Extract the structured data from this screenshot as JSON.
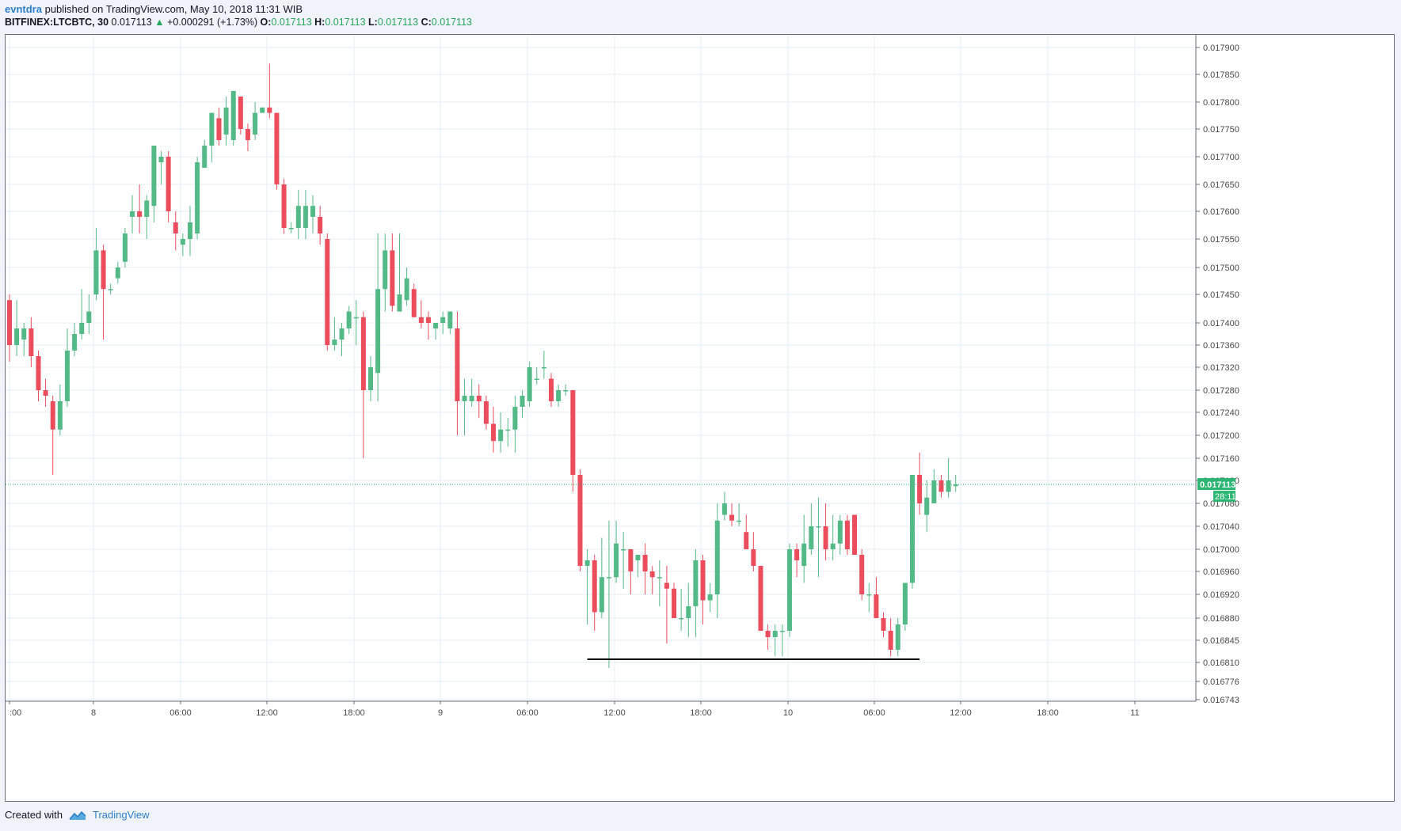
{
  "header": {
    "author": "evntdra",
    "published": "published on TradingView.com, May 10, 2018 11:31 WIB",
    "symbol": "BITFINEX:LTCBTC, 30",
    "last": "0.017113",
    "change": "+0.000291 (+1.73%)",
    "o_label": "O:",
    "o_value": "0.017113",
    "h_label": "H:",
    "h_value": "0.017113",
    "l_label": "L:",
    "l_value": "0.017113",
    "c_label": "C:",
    "c_value": "0.017113"
  },
  "footer": {
    "created": "Created with",
    "brand": "TradingView"
  },
  "colors": {
    "up": "#53b987",
    "down": "#eb4d5c",
    "grid": "#e6edf3",
    "axis_text": "#4a4a4a",
    "price_line": "#2bb673"
  },
  "chart_data": {
    "type": "candlestick",
    "interval": "30",
    "price_scale": "right",
    "grid": true,
    "last_price_label": "0.017113",
    "countdown_label": "28:11",
    "y_ticks": [
      "0.017900",
      "0.017850",
      "0.017800",
      "0.017750",
      "0.017700",
      "0.017650",
      "0.017600",
      "0.017550",
      "0.017500",
      "0.017450",
      "0.017400",
      "0.017360",
      "0.017320",
      "0.017280",
      "0.017240",
      "0.017200",
      "0.017160",
      "0.017120",
      "0.017080",
      "0.017040",
      "0.017000",
      "0.016960",
      "0.016920",
      "0.016880",
      "0.016845",
      "0.016810",
      "0.016776",
      "0.016743"
    ],
    "x_ticks": [
      ":00",
      "8",
      "06:00",
      "12:00",
      "18:00",
      "9",
      "06:00",
      "12:00",
      "18:00",
      "10",
      "06:00",
      "12:00",
      "18:00",
      "11"
    ],
    "candles_ohlc": [
      [
        0.01744,
        0.01745,
        0.01733,
        0.01736
      ],
      [
        0.01736,
        0.01744,
        0.01734,
        0.01739
      ],
      [
        0.01737,
        0.0174,
        0.01734,
        0.01739
      ],
      [
        0.01739,
        0.01741,
        0.01732,
        0.01734
      ],
      [
        0.01734,
        0.01735,
        0.01726,
        0.01728
      ],
      [
        0.01728,
        0.0173,
        0.01725,
        0.01727
      ],
      [
        0.01726,
        0.01727,
        0.01713,
        0.01721
      ],
      [
        0.01721,
        0.01729,
        0.0172,
        0.01726
      ],
      [
        0.01726,
        0.01739,
        0.01725,
        0.01735
      ],
      [
        0.01735,
        0.0174,
        0.01734,
        0.01738
      ],
      [
        0.01738,
        0.01746,
        0.01737,
        0.0174
      ],
      [
        0.0174,
        0.01745,
        0.01738,
        0.01742
      ],
      [
        0.01745,
        0.01757,
        0.01744,
        0.01753
      ],
      [
        0.01753,
        0.01754,
        0.01737,
        0.01746
      ],
      [
        0.01746,
        0.01747,
        0.01745,
        0.01746
      ],
      [
        0.01748,
        0.01751,
        0.01747,
        0.0175
      ],
      [
        0.01751,
        0.01757,
        0.0175,
        0.01756
      ],
      [
        0.01759,
        0.01763,
        0.01756,
        0.0176
      ],
      [
        0.0176,
        0.01765,
        0.01756,
        0.01759
      ],
      [
        0.01759,
        0.01763,
        0.01755,
        0.01762
      ],
      [
        0.01761,
        0.01772,
        0.01758,
        0.01772
      ],
      [
        0.01769,
        0.01771,
        0.01765,
        0.0177
      ],
      [
        0.0177,
        0.01771,
        0.01758,
        0.0176
      ],
      [
        0.01758,
        0.0176,
        0.01753,
        0.01756
      ],
      [
        0.01754,
        0.01756,
        0.01752,
        0.01755
      ],
      [
        0.01755,
        0.01761,
        0.01752,
        0.01758
      ],
      [
        0.01756,
        0.0177,
        0.01755,
        0.01769
      ],
      [
        0.01768,
        0.01773,
        0.01768,
        0.01772
      ],
      [
        0.01772,
        0.01778,
        0.01769,
        0.01778
      ],
      [
        0.01777,
        0.01779,
        0.01772,
        0.01773
      ],
      [
        0.01774,
        0.01781,
        0.01772,
        0.01779
      ],
      [
        0.01773,
        0.01782,
        0.01772,
        0.01782
      ],
      [
        0.01781,
        0.01781,
        0.01774,
        0.01775
      ],
      [
        0.01775,
        0.01776,
        0.01771,
        0.01773
      ],
      [
        0.01774,
        0.0178,
        0.01773,
        0.01778
      ],
      [
        0.01778,
        0.01779,
        0.01778,
        0.01779
      ],
      [
        0.01779,
        0.01787,
        0.01777,
        0.01778
      ],
      [
        0.01778,
        0.01778,
        0.01764,
        0.01765
      ],
      [
        0.01765,
        0.01766,
        0.01756,
        0.01757
      ],
      [
        0.01757,
        0.01758,
        0.01756,
        0.01757
      ],
      [
        0.01757,
        0.01764,
        0.01755,
        0.01761
      ],
      [
        0.01757,
        0.01764,
        0.01755,
        0.01761
      ],
      [
        0.01759,
        0.01763,
        0.01756,
        0.01761
      ],
      [
        0.01759,
        0.01761,
        0.01754,
        0.01756
      ],
      [
        0.01755,
        0.01756,
        0.01735,
        0.01736
      ],
      [
        0.01736,
        0.01741,
        0.01735,
        0.01737
      ],
      [
        0.01737,
        0.0174,
        0.01734,
        0.01739
      ],
      [
        0.01739,
        0.01743,
        0.01738,
        0.01742
      ],
      [
        0.01741,
        0.01744,
        0.01736,
        0.01741
      ],
      [
        0.01741,
        0.01742,
        0.01716,
        0.01728
      ],
      [
        0.01728,
        0.01734,
        0.01726,
        0.01732
      ],
      [
        0.01731,
        0.01756,
        0.01726,
        0.01746
      ],
      [
        0.01746,
        0.01756,
        0.01742,
        0.01753
      ],
      [
        0.01753,
        0.01756,
        0.01742,
        0.01743
      ],
      [
        0.01742,
        0.01756,
        0.01742,
        0.01745
      ],
      [
        0.01744,
        0.0175,
        0.01743,
        0.01748
      ],
      [
        0.01746,
        0.01747,
        0.01742,
        0.01741
      ],
      [
        0.01741,
        0.01744,
        0.01739,
        0.0174
      ],
      [
        0.01741,
        0.01742,
        0.01737,
        0.0174
      ],
      [
        0.01739,
        0.0174,
        0.01737,
        0.0174
      ],
      [
        0.0174,
        0.01742,
        0.01738,
        0.01741
      ],
      [
        0.01739,
        0.01742,
        0.01738,
        0.01742
      ],
      [
        0.01739,
        0.01742,
        0.0172,
        0.01726
      ],
      [
        0.01726,
        0.0173,
        0.0172,
        0.01727
      ],
      [
        0.01726,
        0.0173,
        0.01725,
        0.01727
      ],
      [
        0.01727,
        0.01729,
        0.01723,
        0.01726
      ],
      [
        0.01726,
        0.01727,
        0.01721,
        0.01722
      ],
      [
        0.01722,
        0.01725,
        0.01717,
        0.01719
      ],
      [
        0.01719,
        0.01724,
        0.01717,
        0.01721
      ],
      [
        0.01721,
        0.01723,
        0.01718,
        0.01721
      ],
      [
        0.01721,
        0.01727,
        0.01717,
        0.01725
      ],
      [
        0.01725,
        0.01728,
        0.01723,
        0.01727
      ],
      [
        0.01726,
        0.01733,
        0.01725,
        0.01732
      ],
      [
        0.0173,
        0.01732,
        0.01729,
        0.0173
      ],
      [
        0.01732,
        0.01735,
        0.0173,
        0.01732
      ],
      [
        0.0173,
        0.01731,
        0.01725,
        0.01726
      ],
      [
        0.01726,
        0.01729,
        0.01725,
        0.01728
      ],
      [
        0.01728,
        0.01729,
        0.01727,
        0.01728
      ],
      [
        0.01728,
        0.01728,
        0.0171,
        0.01713
      ],
      [
        0.01713,
        0.01714,
        0.01696,
        0.01697
      ],
      [
        0.01697,
        0.017,
        0.01687,
        0.01698
      ],
      [
        0.01698,
        0.01699,
        0.01686,
        0.01689
      ],
      [
        0.01689,
        0.01702,
        0.01688,
        0.01695
      ],
      [
        0.01695,
        0.01705,
        0.0168,
        0.01695
      ],
      [
        0.01695,
        0.01705,
        0.01694,
        0.01701
      ],
      [
        0.017,
        0.01703,
        0.01693,
        0.017
      ],
      [
        0.017,
        0.017,
        0.01692,
        0.01696
      ],
      [
        0.01698,
        0.01699,
        0.01695,
        0.01699
      ],
      [
        0.01699,
        0.01701,
        0.01692,
        0.01696
      ],
      [
        0.01696,
        0.01697,
        0.01692,
        0.01695
      ],
      [
        0.01695,
        0.01698,
        0.0169,
        0.01695
      ],
      [
        0.01694,
        0.01697,
        0.01684,
        0.01693
      ],
      [
        0.01693,
        0.01694,
        0.01688,
        0.01688
      ],
      [
        0.01688,
        0.01693,
        0.01686,
        0.01688
      ],
      [
        0.01688,
        0.01694,
        0.01685,
        0.0169
      ],
      [
        0.0169,
        0.017,
        0.01685,
        0.01698
      ],
      [
        0.01698,
        0.01699,
        0.01687,
        0.01691
      ],
      [
        0.01691,
        0.01694,
        0.01689,
        0.01692
      ],
      [
        0.01692,
        0.01708,
        0.01688,
        0.01705
      ],
      [
        0.01706,
        0.0171,
        0.01705,
        0.01708
      ],
      [
        0.01706,
        0.01708,
        0.01704,
        0.01705
      ],
      [
        0.01705,
        0.01708,
        0.01704,
        0.01705
      ],
      [
        0.01703,
        0.01706,
        0.01702,
        0.017
      ],
      [
        0.017,
        0.01703,
        0.01696,
        0.01697
      ],
      [
        0.01697,
        0.01697,
        0.01686,
        0.01686
      ],
      [
        0.01686,
        0.01687,
        0.01683,
        0.01685
      ],
      [
        0.01685,
        0.01687,
        0.01682,
        0.01686
      ],
      [
        0.01686,
        0.01687,
        0.01682,
        0.01686
      ],
      [
        0.01686,
        0.01701,
        0.01685,
        0.017
      ],
      [
        0.017,
        0.01701,
        0.01695,
        0.01698
      ],
      [
        0.01697,
        0.01706,
        0.01694,
        0.01701
      ],
      [
        0.017,
        0.01708,
        0.01699,
        0.01704
      ],
      [
        0.01704,
        0.01709,
        0.01695,
        0.01704
      ],
      [
        0.01704,
        0.01708,
        0.01698,
        0.017
      ],
      [
        0.017,
        0.01706,
        0.01698,
        0.01701
      ],
      [
        0.01701,
        0.01706,
        0.01699,
        0.01705
      ],
      [
        0.01705,
        0.01706,
        0.01699,
        0.017
      ],
      [
        0.01706,
        0.01706,
        0.01699,
        0.01699
      ],
      [
        0.01699,
        0.017,
        0.01691,
        0.01692
      ],
      [
        0.01692,
        0.01694,
        0.01689,
        0.01692
      ],
      [
        0.01692,
        0.01695,
        0.01689,
        0.01688
      ],
      [
        0.01688,
        0.01689,
        0.01685,
        0.01686
      ],
      [
        0.01686,
        0.01688,
        0.01682,
        0.01683
      ],
      [
        0.01683,
        0.01688,
        0.01682,
        0.01687
      ],
      [
        0.01687,
        0.01694,
        0.01686,
        0.01694
      ],
      [
        0.01694,
        0.01713,
        0.01693,
        0.01713
      ],
      [
        0.01713,
        0.01717,
        0.01706,
        0.01708
      ],
      [
        0.01706,
        0.01712,
        0.01703,
        0.01709
      ],
      [
        0.01708,
        0.01714,
        0.01708,
        0.01712
      ],
      [
        0.01712,
        0.01713,
        0.01709,
        0.0171
      ],
      [
        0.0171,
        0.01716,
        0.01709,
        0.01712
      ],
      [
        0.01711,
        0.01713,
        0.0171,
        0.017113
      ]
    ],
    "support_line": {
      "from_candle": 80,
      "to_candle": 126,
      "price": 0.01681
    }
  }
}
